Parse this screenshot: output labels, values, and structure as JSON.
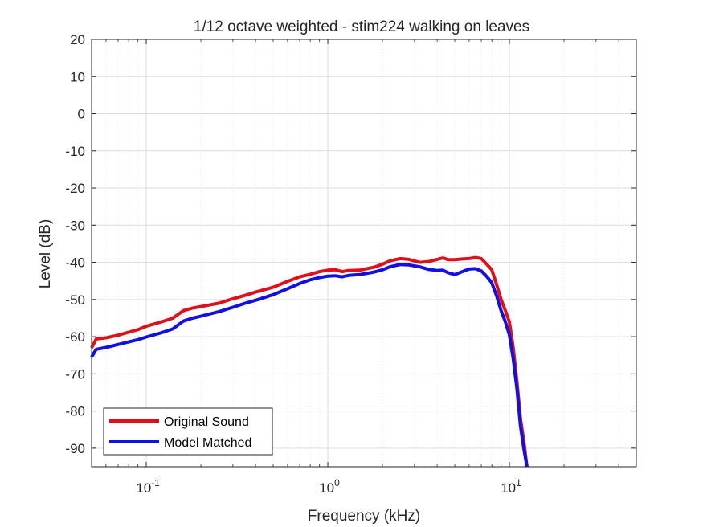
{
  "chart_data": {
    "type": "line",
    "title": "1/12 octave weighted - stim224 walking on leaves",
    "xlabel": "Frequency (kHz)",
    "ylabel": "Level (dB)",
    "xscale": "log",
    "xlim": [
      0.05,
      50
    ],
    "ylim": [
      -95,
      20
    ],
    "grid": true,
    "legend": "bottom-left",
    "x_ticks": [
      {
        "value": 0.1,
        "base": "10",
        "exp": "-1"
      },
      {
        "value": 1,
        "base": "10",
        "exp": "0"
      },
      {
        "value": 10,
        "base": "10",
        "exp": "1"
      }
    ],
    "y_ticks": [
      20,
      10,
      0,
      -10,
      -20,
      -30,
      -40,
      -50,
      -60,
      -70,
      -80,
      -90
    ],
    "y_tick_labels": [
      "20",
      "10",
      "0",
      "-10",
      "-20",
      "-30",
      "-40",
      "-50",
      "-60",
      "-70",
      "-80",
      "-90"
    ],
    "series": [
      {
        "name": "Original Sound",
        "color": "#e0101a",
        "points": [
          [
            0.05,
            -63
          ],
          [
            0.053,
            -60.6
          ],
          [
            0.06,
            -60.3
          ],
          [
            0.07,
            -59.6
          ],
          [
            0.08,
            -58.8
          ],
          [
            0.09,
            -58.1
          ],
          [
            0.1,
            -57.2
          ],
          [
            0.12,
            -56.1
          ],
          [
            0.14,
            -55
          ],
          [
            0.16,
            -53
          ],
          [
            0.18,
            -52.3
          ],
          [
            0.2,
            -51.9
          ],
          [
            0.25,
            -51
          ],
          [
            0.3,
            -49.8
          ],
          [
            0.35,
            -48.9
          ],
          [
            0.4,
            -48
          ],
          [
            0.5,
            -46.7
          ],
          [
            0.6,
            -45.1
          ],
          [
            0.7,
            -43.9
          ],
          [
            0.8,
            -43.2
          ],
          [
            0.9,
            -42.5
          ],
          [
            1.0,
            -42.1
          ],
          [
            1.1,
            -42
          ],
          [
            1.2,
            -42.5
          ],
          [
            1.3,
            -42.2
          ],
          [
            1.5,
            -42.1
          ],
          [
            1.8,
            -41.3
          ],
          [
            2.0,
            -40.5
          ],
          [
            2.2,
            -39.6
          ],
          [
            2.5,
            -39
          ],
          [
            2.8,
            -39.2
          ],
          [
            3.2,
            -40
          ],
          [
            3.6,
            -39.8
          ],
          [
            4.0,
            -39.2
          ],
          [
            4.3,
            -38.8
          ],
          [
            4.6,
            -39.3
          ],
          [
            5.0,
            -39.3
          ],
          [
            5.5,
            -39.1
          ],
          [
            6.0,
            -39
          ],
          [
            6.5,
            -38.7
          ],
          [
            7.0,
            -39
          ],
          [
            7.5,
            -40.5
          ],
          [
            8.0,
            -42
          ],
          [
            8.5,
            -46
          ],
          [
            9.0,
            -50
          ],
          [
            9.5,
            -53
          ],
          [
            10.0,
            -56
          ],
          [
            10.5,
            -63
          ],
          [
            11.0,
            -72
          ],
          [
            11.5,
            -82
          ],
          [
            12.0,
            -88
          ],
          [
            12.5,
            -95
          ]
        ]
      },
      {
        "name": "Model Matched",
        "color": "#1010e6",
        "points": [
          [
            0.05,
            -65.5
          ],
          [
            0.053,
            -63.4
          ],
          [
            0.06,
            -62.9
          ],
          [
            0.07,
            -62.1
          ],
          [
            0.08,
            -61.4
          ],
          [
            0.09,
            -60.8
          ],
          [
            0.1,
            -60.1
          ],
          [
            0.12,
            -59
          ],
          [
            0.14,
            -57.9
          ],
          [
            0.16,
            -55.8
          ],
          [
            0.18,
            -55
          ],
          [
            0.2,
            -54.5
          ],
          [
            0.25,
            -53.3
          ],
          [
            0.3,
            -52.1
          ],
          [
            0.35,
            -51
          ],
          [
            0.4,
            -50.2
          ],
          [
            0.5,
            -48.7
          ],
          [
            0.6,
            -47.1
          ],
          [
            0.7,
            -45.7
          ],
          [
            0.8,
            -44.7
          ],
          [
            0.9,
            -44.1
          ],
          [
            1.0,
            -43.7
          ],
          [
            1.1,
            -43.6
          ],
          [
            1.2,
            -43.9
          ],
          [
            1.3,
            -43.5
          ],
          [
            1.5,
            -43.3
          ],
          [
            1.8,
            -42.6
          ],
          [
            2.0,
            -42
          ],
          [
            2.2,
            -41.2
          ],
          [
            2.5,
            -40.6
          ],
          [
            2.8,
            -40.7
          ],
          [
            3.2,
            -41.2
          ],
          [
            3.6,
            -41.9
          ],
          [
            4.0,
            -42.2
          ],
          [
            4.3,
            -42.1
          ],
          [
            4.6,
            -42.8
          ],
          [
            5.0,
            -43.3
          ],
          [
            5.5,
            -42.5
          ],
          [
            6.0,
            -41.8
          ],
          [
            6.5,
            -41.7
          ],
          [
            7.0,
            -42.3
          ],
          [
            7.5,
            -43.8
          ],
          [
            8.0,
            -45.5
          ],
          [
            8.5,
            -49
          ],
          [
            9.0,
            -53
          ],
          [
            9.5,
            -56
          ],
          [
            10.0,
            -59.5
          ],
          [
            10.5,
            -66
          ],
          [
            11.0,
            -74
          ],
          [
            11.5,
            -84
          ],
          [
            12.0,
            -90
          ],
          [
            12.5,
            -95
          ]
        ]
      }
    ]
  }
}
